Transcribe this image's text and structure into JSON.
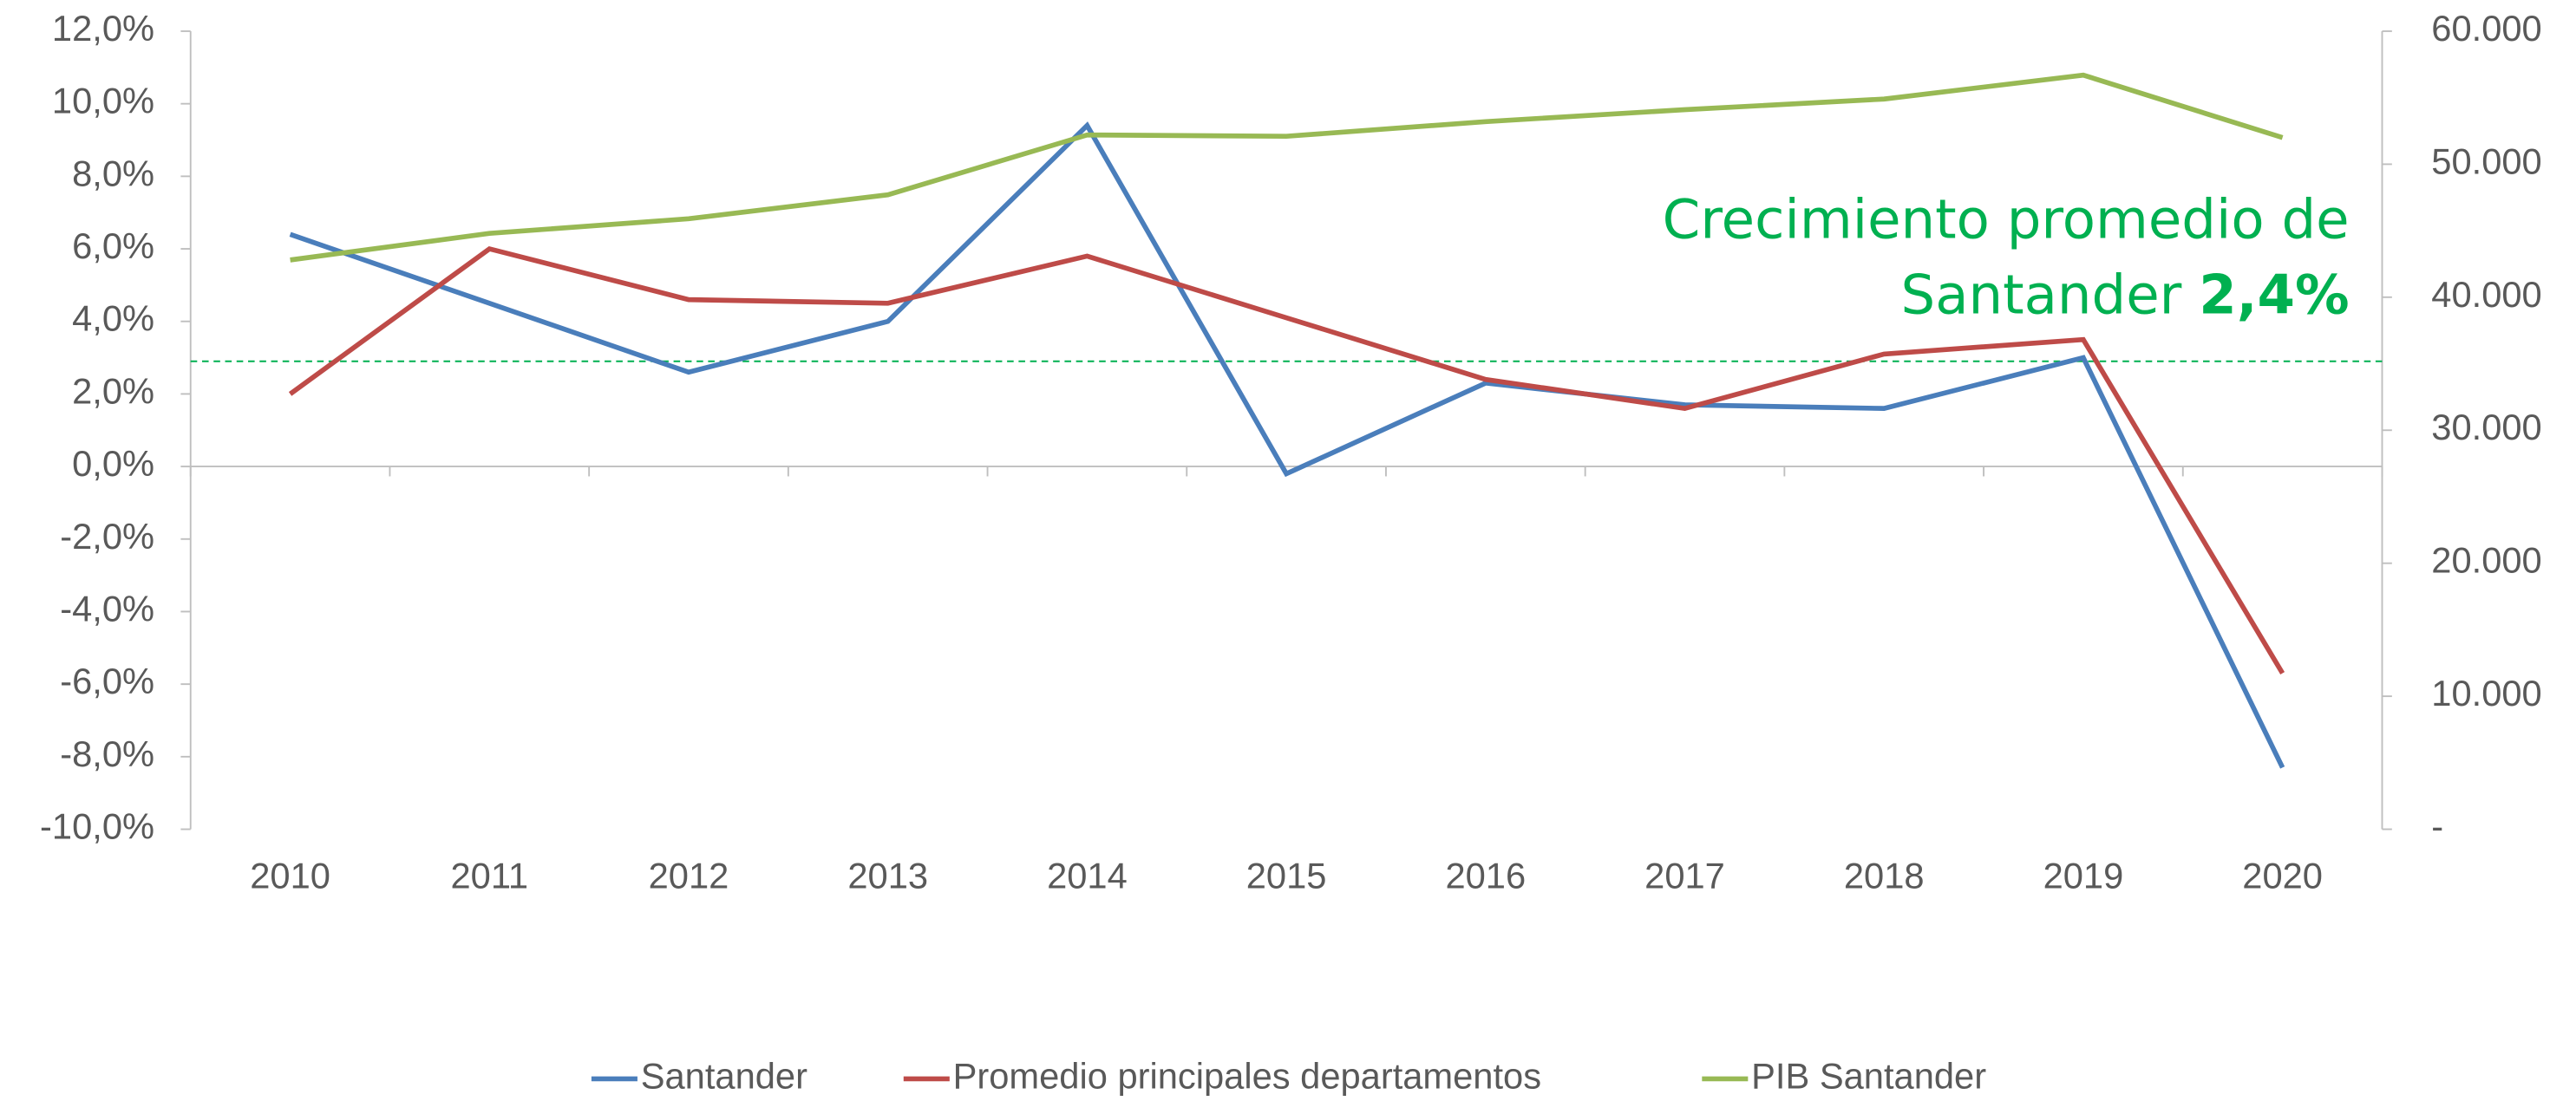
{
  "chart_data": {
    "type": "line",
    "categories": [
      "2010",
      "2011",
      "2012",
      "2013",
      "2014",
      "2015",
      "2016",
      "2017",
      "2018",
      "2019",
      "2020"
    ],
    "series": [
      {
        "name": "Santander",
        "color": "#4a7ebb",
        "values": [
          6.4,
          4.5,
          2.6,
          4.0,
          9.4,
          -0.2,
          2.3,
          1.7,
          1.6,
          3.0,
          -8.3
        ]
      },
      {
        "name": "Promedio principales departamentos",
        "color": "#be4b48",
        "values": [
          2.0,
          6.0,
          4.6,
          4.5,
          5.8,
          4.1,
          2.4,
          1.6,
          3.1,
          3.5,
          -5.7
        ]
      },
      {
        "name": "PIB Santander",
        "color": "#98b954",
        "axis": "y2",
        "values": [
          42800,
          44800,
          45900,
          47700,
          52200,
          52100,
          53200,
          54100,
          54900,
          56700,
          52000
        ]
      }
    ],
    "ylim": [
      -10,
      12
    ],
    "yticks": [
      {
        "value": 12,
        "label": "12,0%"
      },
      {
        "value": 10,
        "label": "10,0%"
      },
      {
        "value": 8,
        "label": "8,0%"
      },
      {
        "value": 6,
        "label": "6,0%"
      },
      {
        "value": 4,
        "label": "4,0%"
      },
      {
        "value": 2,
        "label": "2,0%"
      },
      {
        "value": 0,
        "label": "0,0%"
      },
      {
        "value": -2,
        "label": "-2,0%"
      },
      {
        "value": -4,
        "label": "-4,0%"
      },
      {
        "value": -6,
        "label": "-6,0%"
      },
      {
        "value": -8,
        "label": "-8,0%"
      },
      {
        "value": -10,
        "label": "-10,0%"
      }
    ],
    "y2lim": [
      0,
      60000
    ],
    "y2ticks": [
      {
        "value": 60000,
        "label": "60.000"
      },
      {
        "value": 50000,
        "label": "50.000"
      },
      {
        "value": 40000,
        "label": "40.000"
      },
      {
        "value": 30000,
        "label": "30.000"
      },
      {
        "value": 20000,
        "label": "20.000"
      },
      {
        "value": 10000,
        "label": "10.000"
      },
      {
        "value": 0,
        "label": "-"
      }
    ],
    "reference_line": {
      "value": 2.9,
      "color": "#00b050"
    },
    "annotation": {
      "line1": "Crecimiento promedio de",
      "line2": "Santander",
      "value_text": "2,4%"
    },
    "legend": "bottom"
  }
}
